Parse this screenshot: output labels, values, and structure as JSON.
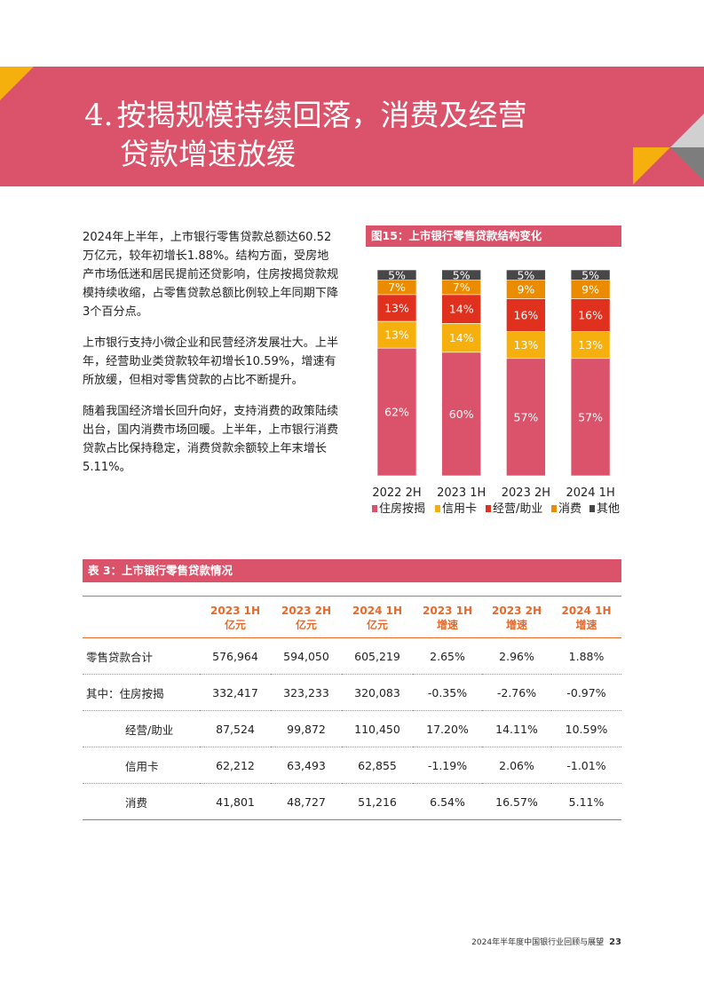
{
  "page": {
    "section_number": "4.",
    "title_line1": "按揭规模持续回落，消费及经营",
    "title_line2": "贷款增速放缓",
    "paragraphs": [
      "2024年上半年，上市银行零售贷款总额达60.52万亿元，较年初增长1.88%。结构方面，受房地产市场低迷和居民提前还贷影响，住房按揭贷款规模持续收缩，占零售贷款总额比例较上年同期下降3个百分点。",
      "上市银行支持小微企业和民营经济发展壮大。上半年，经营助业类贷款较年初增长10.59%，增速有所放缓，但相对零售贷款的占比不断提升。",
      "随着我国经济增长回升向好，支持消费的政策陆续出台，国内消费市场回暖。上半年，上市银行消费贷款占比保持稳定，消费贷款余额较上年末增长5.11%。"
    ],
    "footer_text": "2024年半年度中国银行业回顾与展望",
    "page_number": "23"
  },
  "colors": {
    "brand": "#db536a",
    "accent_orange": "#e8692a",
    "mortgage": "#db536a",
    "credit_card": "#f5b00e",
    "business": "#e0301e",
    "consumer": "#eb8c00",
    "other": "#474747"
  },
  "chart_data": {
    "type": "bar",
    "stacked": true,
    "title": "图15：上市银行零售贷款结构变化",
    "categories": [
      "2022 2H",
      "2023 1H",
      "2023 2H",
      "2024 1H"
    ],
    "series": [
      {
        "name": "住房按揭",
        "color": "#db536a",
        "values": [
          62,
          60,
          57,
          57
        ]
      },
      {
        "name": "信用卡",
        "color": "#f5b00e",
        "values": [
          13,
          14,
          13,
          13
        ]
      },
      {
        "name": "经营/助业",
        "color": "#e0301e",
        "values": [
          13,
          14,
          16,
          16
        ]
      },
      {
        "name": "消费",
        "color": "#eb8c00",
        "values": [
          7,
          7,
          9,
          9
        ]
      },
      {
        "name": "其他",
        "color": "#474747",
        "values": [
          5,
          5,
          5,
          5
        ]
      }
    ],
    "value_suffix": "%",
    "ylim": [
      0,
      100
    ],
    "legend_position": "bottom"
  },
  "table": {
    "title": "表 3：上市银行零售贷款情况",
    "headers": [
      {
        "line1": "",
        "line2": ""
      },
      {
        "line1": "2023 1H",
        "line2": "亿元"
      },
      {
        "line1": "2023 2H",
        "line2": "亿元"
      },
      {
        "line1": "2024 1H",
        "line2": "亿元"
      },
      {
        "line1": "2023 1H",
        "line2": "增速"
      },
      {
        "line1": "2023 2H",
        "line2": "增速"
      },
      {
        "line1": "2024 1H",
        "line2": "增速"
      }
    ],
    "rows": [
      {
        "label": "零售贷款合计",
        "cells": [
          "576,964",
          "594,050",
          "605,219",
          "2.65%",
          "2.96%",
          "1.88%"
        ]
      },
      {
        "label": "其中：住房按揭",
        "cells": [
          "332,417",
          "323,233",
          "320,083",
          "-0.35%",
          "-2.76%",
          "-0.97%"
        ]
      },
      {
        "label": "经营/助业",
        "cells": [
          "87,524",
          "99,872",
          "110,450",
          "17.20%",
          "14.11%",
          "10.59%"
        ]
      },
      {
        "label": "信用卡",
        "cells": [
          "62,212",
          "63,493",
          "62,855",
          "-1.19%",
          "2.06%",
          "-1.01%"
        ]
      },
      {
        "label": "消费",
        "cells": [
          "41,801",
          "48,727",
          "51,216",
          "6.54%",
          "16.57%",
          "5.11%"
        ]
      }
    ]
  }
}
